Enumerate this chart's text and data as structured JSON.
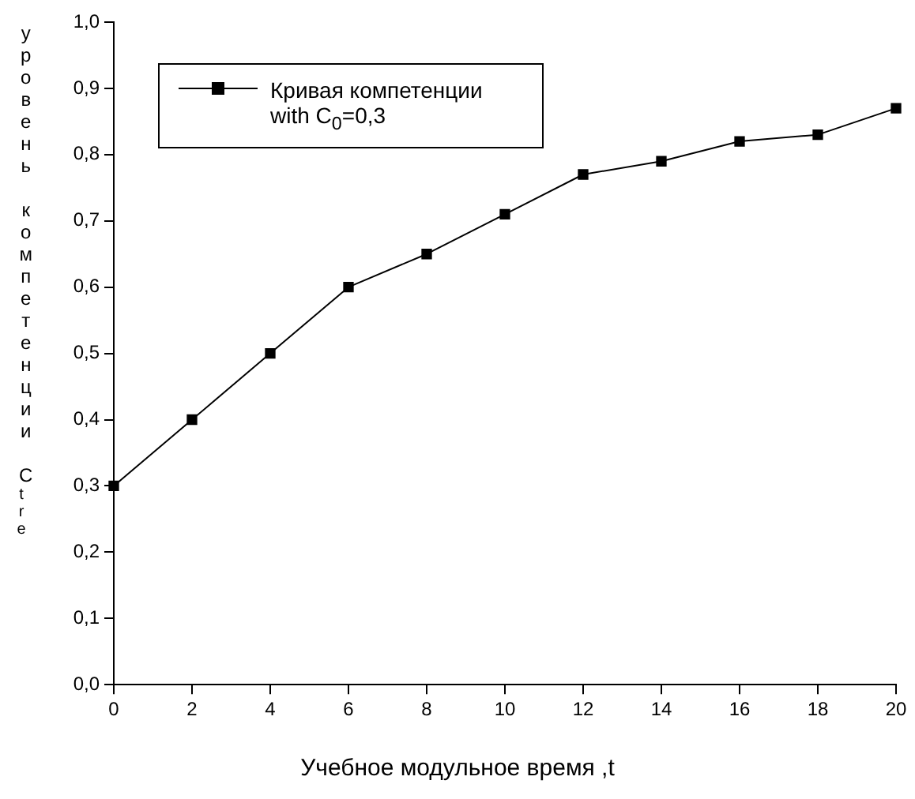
{
  "chart_data": {
    "type": "line",
    "xlabel": "Учебное модульное время ,t",
    "ylabel": "уровень компетенции C$_{tre}$",
    "x": [
      0,
      2,
      4,
      6,
      8,
      10,
      12,
      14,
      16,
      18,
      20
    ],
    "series": [
      {
        "name": "Кривая компетенции with C$_{0}$=0,3",
        "color": "#000000",
        "values": [
          0.3,
          0.4,
          0.5,
          0.6,
          0.65,
          0.71,
          0.77,
          0.79,
          0.82,
          0.83,
          0.87
        ]
      }
    ],
    "xlim": [
      0,
      20
    ],
    "xticks": [
      0,
      2,
      4,
      6,
      8,
      10,
      12,
      14,
      16,
      18,
      20
    ],
    "ylim": [
      0,
      1
    ],
    "yticks": [
      {
        "value": 0,
        "label": "0,0"
      },
      {
        "value": 0.1,
        "label": "0,1"
      },
      {
        "value": 0.2,
        "label": "0,2"
      },
      {
        "value": 0.3,
        "label": "0,3"
      },
      {
        "value": 0.4,
        "label": "0,4"
      },
      {
        "value": 0.5,
        "label": "0,5"
      },
      {
        "value": 0.6,
        "label": "0,6"
      },
      {
        "value": 0.7,
        "label": "0,7"
      },
      {
        "value": 0.8,
        "label": "0,8"
      },
      {
        "value": 0.9,
        "label": "0,9"
      },
      {
        "value": 1,
        "label": "1,0"
      }
    ],
    "grid": false,
    "legend": "top left",
    "marker": "square",
    "line_style": "solid"
  }
}
